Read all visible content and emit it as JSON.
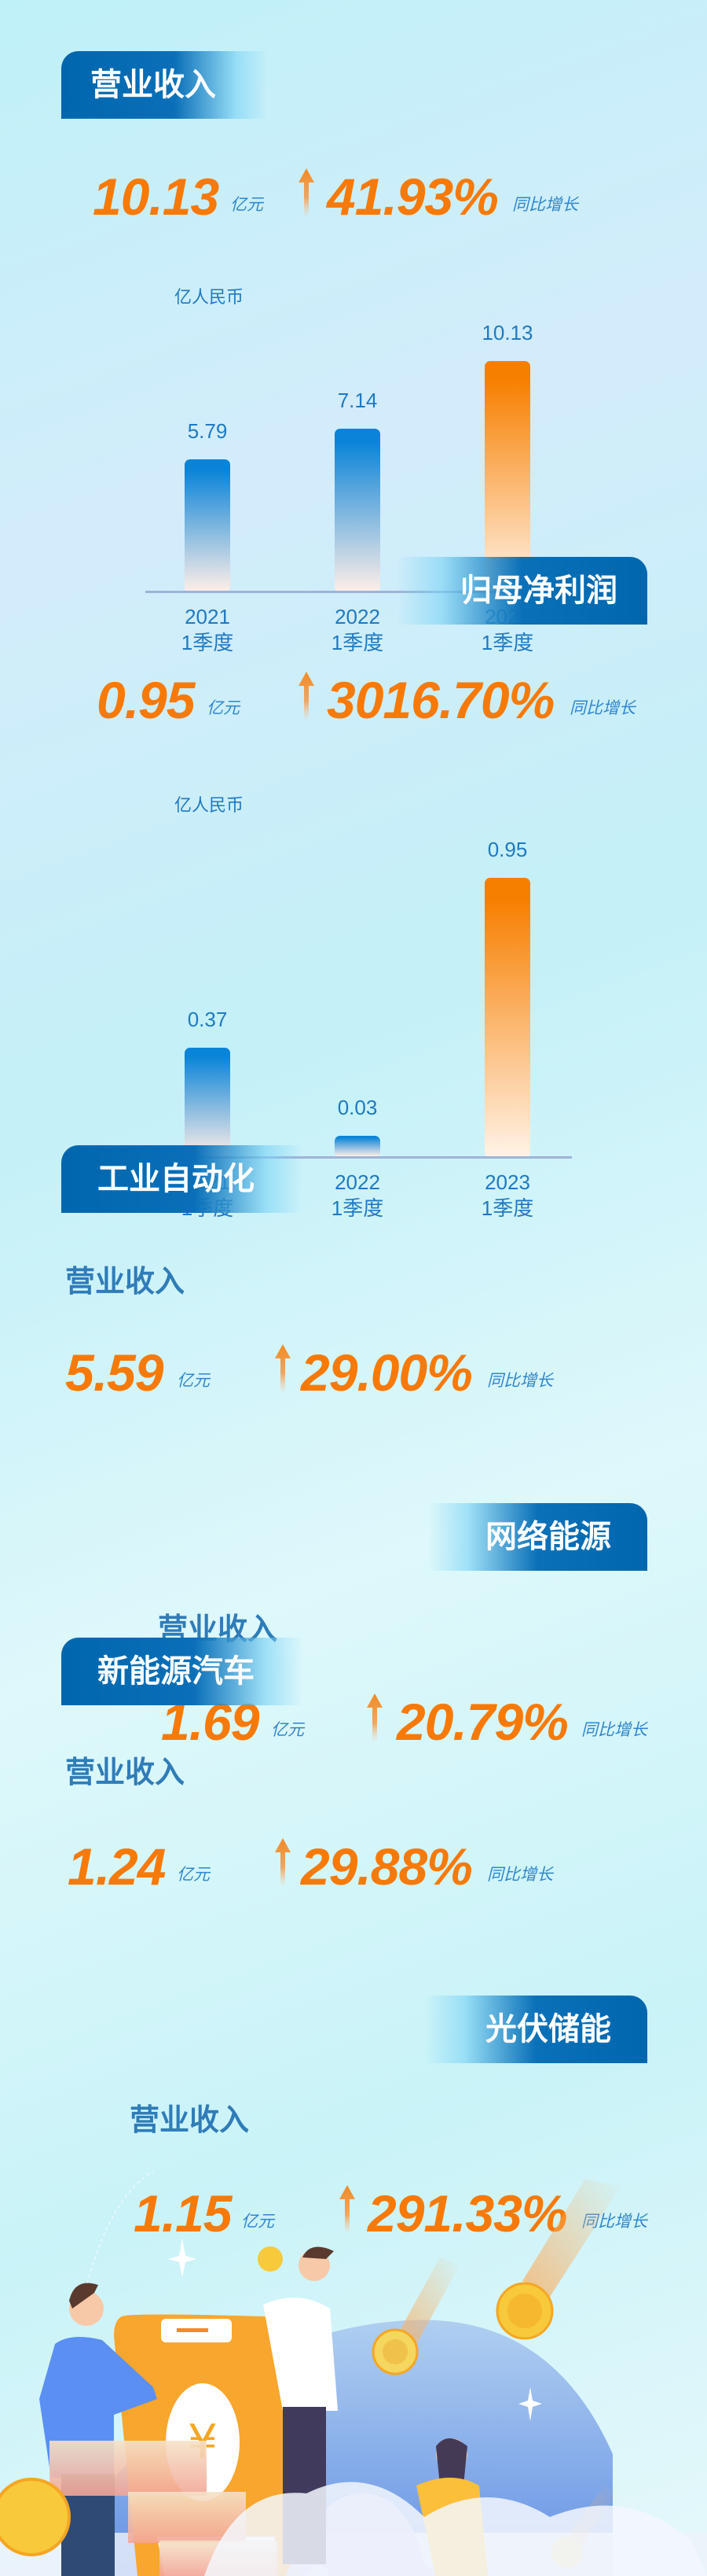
{
  "sections": {
    "revenue": {
      "title": "营业收入",
      "value": "10.13",
      "unit": "亿元",
      "growth": "41.93%",
      "growth_label": "同比增长",
      "chart_unit": "亿人民币"
    },
    "net_profit": {
      "title": "归母净利润",
      "value": "0.95",
      "unit": "亿元",
      "growth": "3016.70%",
      "growth_label": "同比增长",
      "chart_unit": "亿人民币"
    },
    "industrial_automation": {
      "title": "工业自动化",
      "label": "营业收入",
      "value": "5.59",
      "unit": "亿元",
      "growth": "29.00%",
      "growth_label": "同比增长"
    },
    "network_energy": {
      "title": "网络能源",
      "label": "营业收入",
      "value": "1.69",
      "unit": "亿元",
      "growth": "20.79%",
      "growth_label": "同比增长"
    },
    "nev": {
      "title": "新能源汽车",
      "label": "营业收入",
      "value": "1.24",
      "unit": "亿元",
      "growth": "29.88%",
      "growth_label": "同比增长"
    },
    "pv_storage": {
      "title": "光伏储能",
      "label": "营业收入",
      "value": "1.15",
      "unit": "亿元",
      "growth": "291.33%",
      "growth_label": "同比增长"
    }
  },
  "colors": {
    "accent": "#f77a06",
    "brand_blue": "#0066ad",
    "text_blue": "#1f79c2",
    "bar_blue": "#0a84d8",
    "bar_orange": "#f77f00"
  },
  "icons": {
    "growth_arrow": "arrow-up-icon"
  },
  "chart_data": [
    {
      "type": "bar",
      "ylabel": "亿人民币",
      "categories": [
        "2021\n1季度",
        "2022\n1季度",
        "2023\n1季度"
      ],
      "category_lines": [
        [
          "2021",
          "1季度"
        ],
        [
          "2022",
          "1季度"
        ],
        [
          "2023",
          "1季度"
        ]
      ],
      "values": [
        5.79,
        7.14,
        10.13
      ],
      "value_labels": [
        "5.79",
        "7.14",
        "10.13"
      ],
      "highlight": [
        false,
        false,
        true
      ],
      "grid": false
    },
    {
      "type": "bar",
      "ylabel": "亿人民币",
      "categories": [
        "2021\n1季度",
        "2022\n1季度",
        "2023\n1季度"
      ],
      "category_lines": [
        [
          "2021",
          "1季度"
        ],
        [
          "2022",
          "1季度"
        ],
        [
          "2023",
          "1季度"
        ]
      ],
      "values": [
        0.37,
        0.03,
        0.95
      ],
      "value_labels": [
        "0.37",
        "0.03",
        "0.95"
      ],
      "highlight": [
        false,
        false,
        true
      ],
      "grid": false
    }
  ]
}
